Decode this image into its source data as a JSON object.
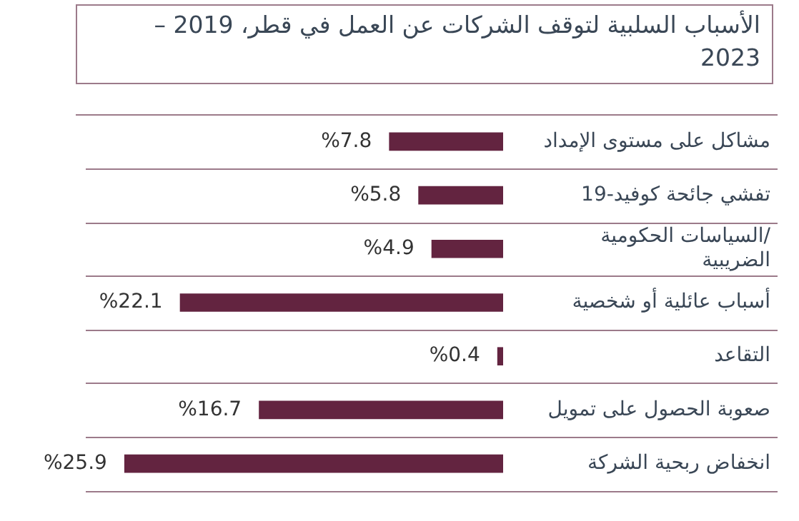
{
  "chart_data": {
    "type": "bar",
    "orientation": "horizontal",
    "title": "الأسباب السلبية لتوقف الشركات عن العمل في قطر، 2019 – 2023",
    "categories": [
      "مشاكل على مستوى الإمداد",
      "تفشي جائحة كوفيد-19",
      "السياسات الحكومية/ الضريبية",
      "أسباب عائلية أو شخصية",
      "التقاعد",
      "صعوبة الحصول على تمويل",
      "انخفاض ربحية الشركة"
    ],
    "values": [
      7.8,
      5.8,
      4.9,
      22.1,
      0.4,
      16.7,
      25.9
    ],
    "value_labels": [
      "%7.8",
      "%5.8",
      "%4.9",
      "%22.1",
      "%0.4",
      "%16.7",
      "%25.9"
    ],
    "color": "#632440",
    "grid": "y",
    "legend": false,
    "tick_labels": "y"
  }
}
